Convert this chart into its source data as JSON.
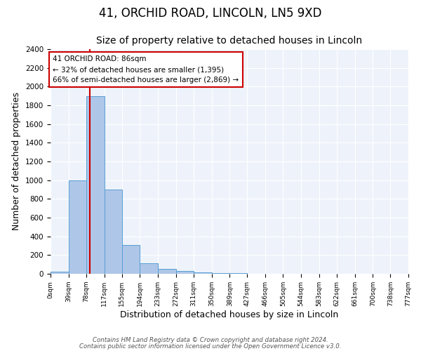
{
  "title": "41, ORCHID ROAD, LINCOLN, LN5 9XD",
  "subtitle": "Size of property relative to detached houses in Lincoln",
  "xlabel": "Distribution of detached houses by size in Lincoln",
  "ylabel": "Number of detached properties",
  "bin_edges": [
    0,
    39,
    78,
    117,
    155,
    194,
    233,
    272,
    311,
    350,
    389,
    427,
    466,
    505,
    544,
    583,
    622,
    661,
    700,
    738,
    777
  ],
  "bar_heights": [
    20,
    1000,
    1900,
    900,
    310,
    110,
    50,
    30,
    15,
    8,
    5,
    3,
    2,
    1,
    1,
    1,
    0,
    0,
    0,
    0
  ],
  "bar_color": "#aec6e8",
  "bar_edge_color": "#5a9fd4",
  "property_size": 86,
  "red_line_color": "#cc0000",
  "annotation_text": "41 ORCHID ROAD: 86sqm\n← 32% of detached houses are smaller (1,395)\n66% of semi-detached houses are larger (2,869) →",
  "annotation_box_color": "#ffffff",
  "annotation_border_color": "#cc0000",
  "ylim": [
    0,
    2400
  ],
  "yticks": [
    0,
    200,
    400,
    600,
    800,
    1000,
    1200,
    1400,
    1600,
    1800,
    2000,
    2200,
    2400
  ],
  "background_color": "#eef3fb",
  "footer_line1": "Contains HM Land Registry data © Crown copyright and database right 2024.",
  "footer_line2": "Contains public sector information licensed under the Open Government Licence v3.0.",
  "title_fontsize": 12,
  "subtitle_fontsize": 10,
  "xlabel_fontsize": 9,
  "ylabel_fontsize": 9
}
